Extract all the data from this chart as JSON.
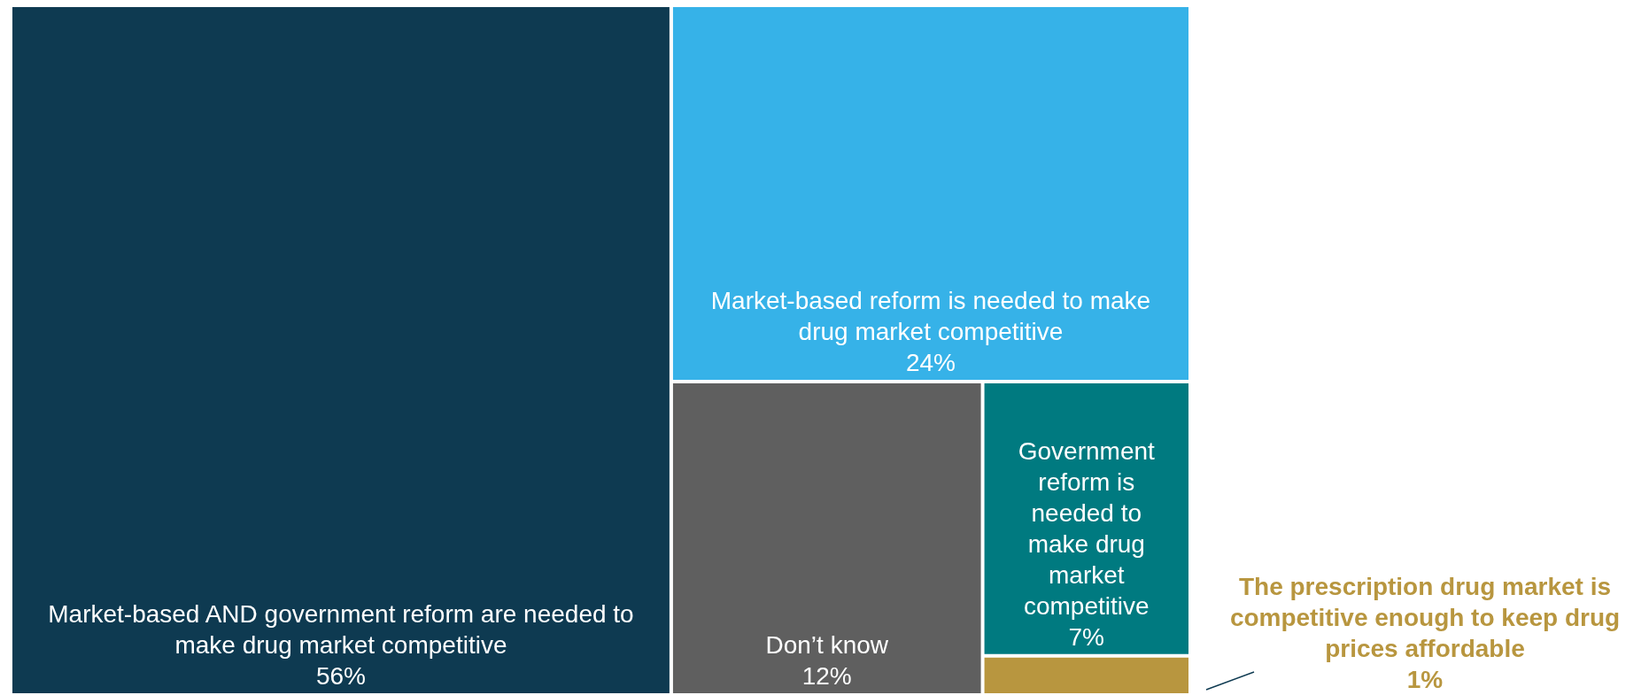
{
  "chart_data": {
    "type": "other",
    "categories": [
      "Market-based AND government reform are needed to make drug market competitive",
      "Market-based reform is needed to make drug market competitive",
      "Don’t know",
      "Government reform is needed to make drug market competitive",
      "The prescription drug market is competitive enough to keep drug prices affordable"
    ],
    "values": [
      56,
      24,
      12,
      7,
      1
    ],
    "value_labels": [
      "56%",
      "24%",
      "12%",
      "7%",
      "1%"
    ],
    "colors": [
      "#0e3a51",
      "#36b2e8",
      "#5f5f5f",
      "#007a80",
      "#b8963f"
    ]
  }
}
